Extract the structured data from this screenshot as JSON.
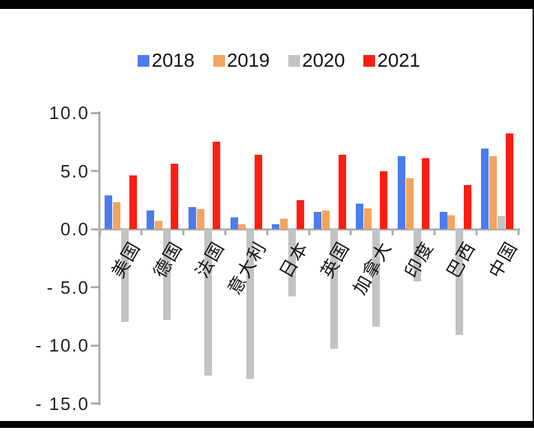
{
  "legend": {
    "items": [
      {
        "label": "2018",
        "color": "#4b7bee"
      },
      {
        "label": "2019",
        "color": "#f3a45f"
      },
      {
        "label": "2020",
        "color": "#c3c3c3"
      },
      {
        "label": "2021",
        "color": "#fc1e14"
      }
    ]
  },
  "y_axis": {
    "tick_labels": [
      "10.0",
      "5.0",
      "0.0",
      "- 5.0",
      "- 10.0",
      "- 15.0"
    ],
    "tick_values": [
      10,
      5,
      0,
      -5,
      -10,
      -15
    ]
  },
  "chart_data": {
    "type": "bar",
    "title": "",
    "categories": [
      "美国",
      "德国",
      "法国",
      "意大利",
      "日本",
      "英国",
      "加拿大",
      "印度",
      "巴西",
      "中国"
    ],
    "series": [
      {
        "name": "2018",
        "color": "#4b7bee",
        "values": [
          2.9,
          1.6,
          1.9,
          1.0,
          0.4,
          1.5,
          2.2,
          6.3,
          1.5,
          6.9
        ]
      },
      {
        "name": "2019",
        "color": "#f3a45f",
        "values": [
          2.3,
          0.7,
          1.7,
          0.4,
          0.9,
          1.6,
          1.8,
          4.4,
          1.2,
          6.3
        ]
      },
      {
        "name": "2020",
        "color": "#c3c3c3",
        "values": [
          -8.0,
          -7.8,
          -12.6,
          -12.9,
          -5.8,
          -10.3,
          -8.4,
          -4.5,
          -9.1,
          1.1
        ]
      },
      {
        "name": "2021",
        "color": "#fc1e14",
        "values": [
          4.6,
          5.6,
          7.5,
          6.4,
          2.5,
          6.4,
          5.0,
          6.1,
          3.8,
          8.2
        ]
      }
    ],
    "ylim": [
      -15,
      10
    ],
    "grid": false,
    "legend_position": "top-center",
    "category_label_rotation_deg": -60
  }
}
